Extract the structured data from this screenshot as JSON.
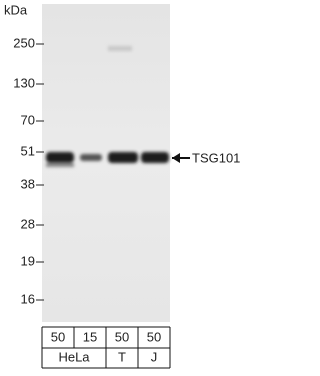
{
  "unit_label": "kDa",
  "markers": [
    "250",
    "130",
    "70",
    "51",
    "38",
    "28",
    "19",
    "16"
  ],
  "target_label": "TSG101",
  "lanes": {
    "loads": [
      "50",
      "15",
      "50",
      "50"
    ]
  },
  "groups": [
    "HeLa",
    "T",
    "J"
  ]
}
